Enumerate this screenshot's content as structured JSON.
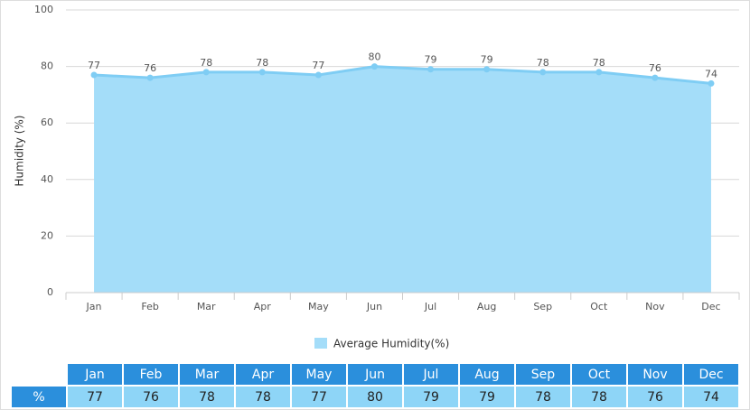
{
  "chart_data": {
    "type": "area",
    "y_label": "Humidity (%)",
    "categories": [
      "Jan",
      "Feb",
      "Mar",
      "Apr",
      "May",
      "Jun",
      "Jul",
      "Aug",
      "Sep",
      "Oct",
      "Nov",
      "Dec"
    ],
    "series": [
      {
        "name": "Average Humidity(%)",
        "color": "#7fcdf4",
        "values": [
          77,
          76,
          78,
          78,
          77,
          80,
          79,
          79,
          78,
          78,
          76,
          74
        ]
      }
    ],
    "ylim": [
      0,
      100
    ],
    "yticks": [
      0,
      20,
      40,
      60,
      80,
      100
    ],
    "grid": true
  },
  "table": {
    "row_label": "%"
  }
}
